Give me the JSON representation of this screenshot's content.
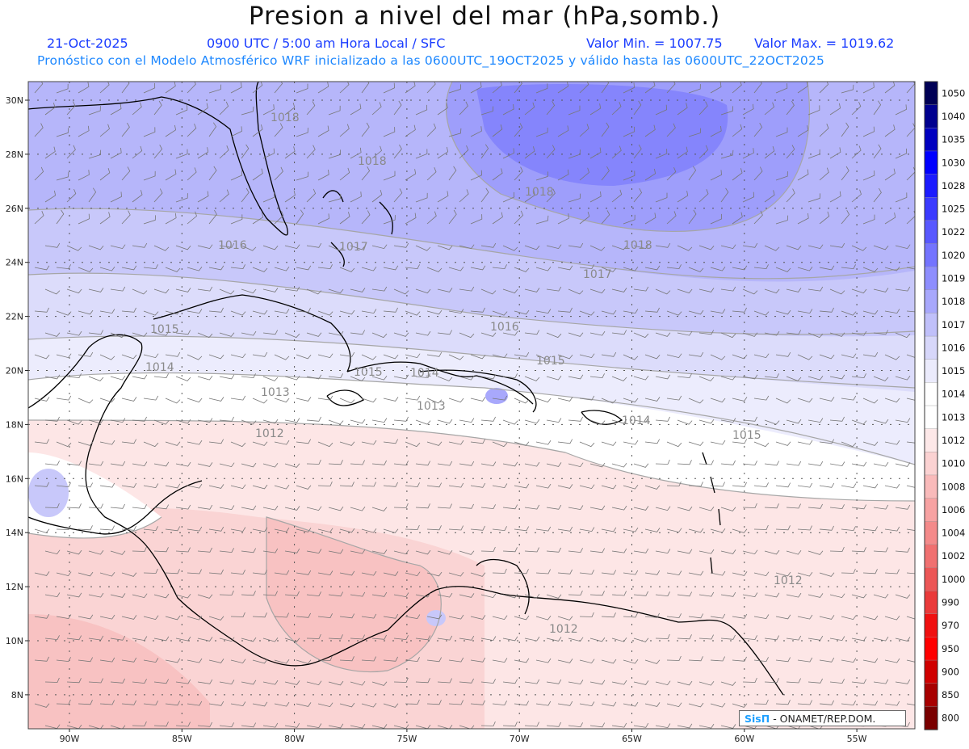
{
  "header": {
    "title": "Presion a nivel del mar (hPa,somb.)",
    "date": "21-Oct-2025",
    "time": "0900 UTC / 5:00 am Hora Local / SFC",
    "min_label": "Valor Min. = 1007.75",
    "max_label": "Valor Max. = 1019.62",
    "subtitle": "Pronóstico con el Modelo Atmosférico WRF inicializado a las 0600UTC_19OCT2025 y válido hasta las  0600UTC_22OCT2025"
  },
  "axes": {
    "lat_labels": [
      "30N",
      "28N",
      "26N",
      "24N",
      "22N",
      "20N",
      "18N",
      "16N",
      "14N",
      "12N",
      "10N",
      "8N"
    ],
    "lon_labels": [
      "90W",
      "85W",
      "80W",
      "75W",
      "70W",
      "65W",
      "60W",
      "55W"
    ]
  },
  "contour_labels": [
    "1018",
    "1018",
    "1018",
    "1018",
    "1017",
    "1017",
    "1016",
    "1016",
    "1015",
    "1015",
    "1015",
    "1015",
    "1014",
    "1014",
    "1014",
    "1013",
    "1013",
    "1012",
    "1012",
    "1012"
  ],
  "color_scale": {
    "values": [
      "1050",
      "1040",
      "1035",
      "1030",
      "1028",
      "1025",
      "1022",
      "1020",
      "1019",
      "1018",
      "1017",
      "1016",
      "1015",
      "1014",
      "1013",
      "1012",
      "1010",
      "1008",
      "1006",
      "1004",
      "1002",
      "1000",
      "990",
      "970",
      "950",
      "900",
      "850",
      "800"
    ],
    "colors": [
      "#000055",
      "#00008f",
      "#0000c0",
      "#0000ff",
      "#1b1bff",
      "#3a3aff",
      "#5858ff",
      "#7474ff",
      "#8e8efe",
      "#a8a8fc",
      "#c0c0fa",
      "#d7d7fa",
      "#ebebfc",
      "#ffffff",
      "#ffffff",
      "#fde8e8",
      "#fbd2d2",
      "#f9baba",
      "#f7a2a2",
      "#f48a8a",
      "#f07070",
      "#ec5656",
      "#ea3a3a",
      "#f01010",
      "#ff0000",
      "#d00000",
      "#a80000",
      "#7a0000"
    ]
  },
  "logo": {
    "mark": "SisΠ",
    "text": "- ONAMET/REP.DOM."
  }
}
